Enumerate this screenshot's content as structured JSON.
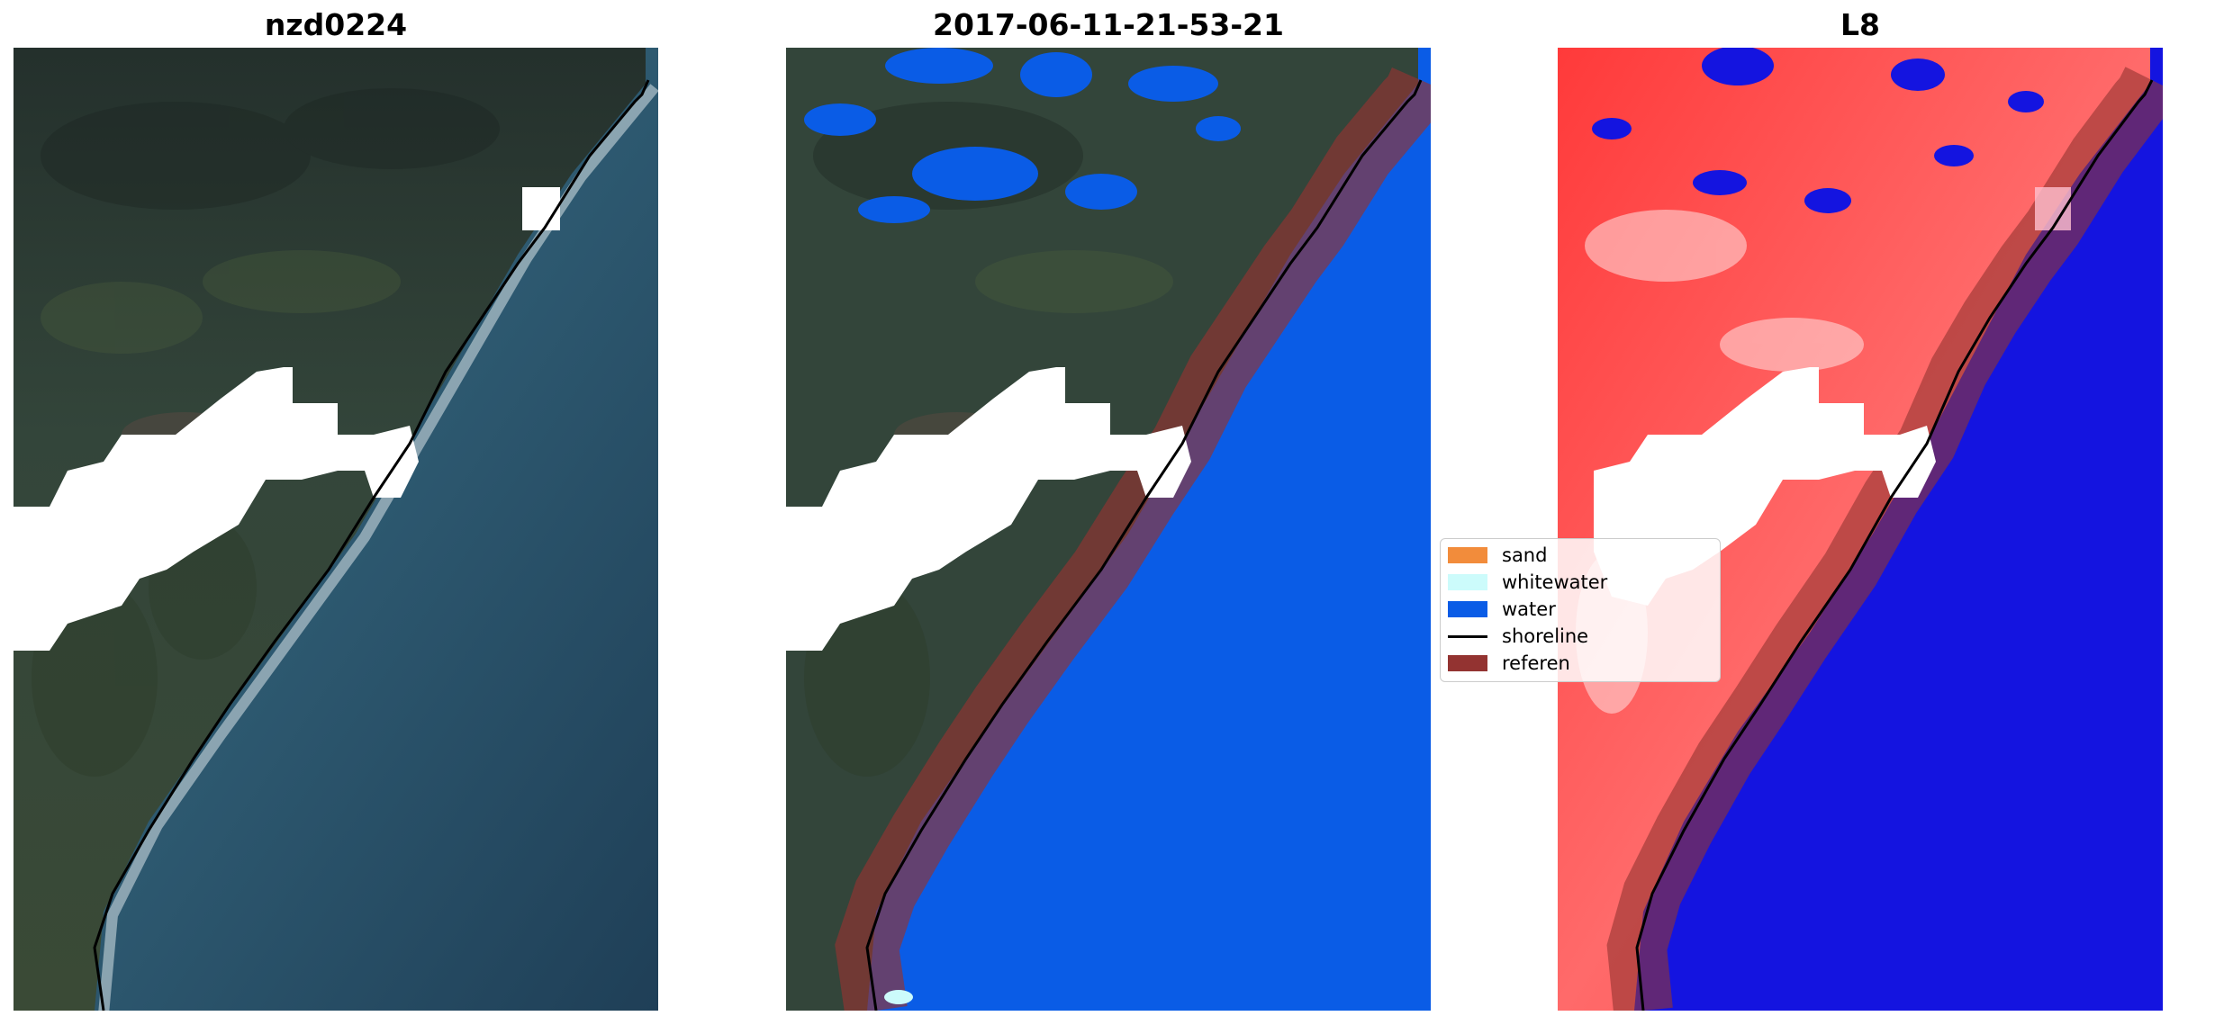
{
  "panels": [
    {
      "title": "nzd0224"
    },
    {
      "title": "2017-06-11-21-53-21"
    },
    {
      "title": "L8"
    }
  ],
  "legend": {
    "items": [
      {
        "label": "sand",
        "color": "#f28c3b",
        "kind": "patch"
      },
      {
        "label": "whitewater",
        "color": "#ccfbfb",
        "kind": "patch"
      },
      {
        "label": "water",
        "color": "#0a5ce6",
        "kind": "patch"
      },
      {
        "label": "shoreline",
        "color": "#000000",
        "kind": "line"
      },
      {
        "label": "referen",
        "color": "#933331",
        "kind": "patch"
      }
    ]
  },
  "colors": {
    "land_dark": "#2e3b30",
    "sea_rgb": "#25485e",
    "water_class": "#0a5ce6",
    "reference_buffer": "#933331",
    "index_positive": "#ff2020",
    "index_negative": "#1414e0",
    "cloud_mask": "#ffffff"
  }
}
